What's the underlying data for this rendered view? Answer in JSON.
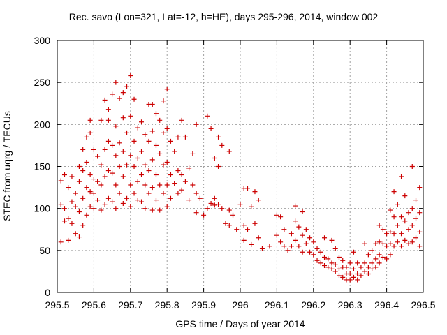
{
  "chart_data": {
    "type": "scatter",
    "title": "Rec. savo (Lon=321, Lat=-12, h=HE), days 295-296, 2014, window 002",
    "xlabel": "GPS time / Days of year 2014",
    "ylabel": "STEC from uqrg / TECUs",
    "xlim": [
      295.5,
      296.5
    ],
    "ylim": [
      0,
      300
    ],
    "xticks": [
      295.5,
      295.6,
      295.7,
      295.8,
      295.9,
      296.0,
      296.1,
      296.2,
      296.3,
      296.4,
      296.5
    ],
    "xtick_labels": [
      "295.5",
      "295.6",
      "295.7",
      "295.8",
      "295.9",
      "296",
      "296.1",
      "296.2",
      "296.3",
      "296.4",
      "296.5"
    ],
    "yticks": [
      0,
      50,
      100,
      150,
      200,
      250,
      300
    ],
    "ytick_labels": [
      "0",
      "50",
      "100",
      "150",
      "200",
      "250",
      "300"
    ],
    "grid": true,
    "legend": "none",
    "marker": "+",
    "color": "#cc0000",
    "series": [
      {
        "points": [
          [
            295.51,
            133
          ],
          [
            295.51,
            105
          ],
          [
            295.51,
            60
          ],
          [
            295.52,
            140
          ],
          [
            295.52,
            100
          ],
          [
            295.52,
            85
          ],
          [
            295.53,
            125
          ],
          [
            295.53,
            88
          ],
          [
            295.53,
            62
          ],
          [
            295.54,
            138
          ],
          [
            295.54,
            108
          ],
          [
            295.54,
            82
          ],
          [
            295.55,
            118
          ],
          [
            295.55,
            102
          ],
          [
            295.55,
            70
          ],
          [
            295.56,
            150
          ],
          [
            295.56,
            132
          ],
          [
            295.56,
            96
          ],
          [
            295.56,
            66
          ],
          [
            295.57,
            170
          ],
          [
            295.57,
            145
          ],
          [
            295.57,
            112
          ],
          [
            295.57,
            80
          ],
          [
            295.58,
            185
          ],
          [
            295.58,
            155
          ],
          [
            295.58,
            125
          ],
          [
            295.58,
            92
          ],
          [
            295.59,
            205
          ],
          [
            295.59,
            190
          ],
          [
            295.59,
            140
          ],
          [
            295.59,
            120
          ],
          [
            295.59,
            102
          ],
          [
            295.6,
            170
          ],
          [
            295.6,
            135
          ],
          [
            295.6,
            118
          ],
          [
            295.6,
            100
          ],
          [
            295.61,
            162
          ],
          [
            295.61,
            132
          ],
          [
            295.61,
            110
          ],
          [
            295.62,
            205
          ],
          [
            295.62,
            152
          ],
          [
            295.62,
            128
          ],
          [
            295.62,
            98
          ],
          [
            295.63,
            229
          ],
          [
            295.63,
            170
          ],
          [
            295.63,
            138
          ],
          [
            295.63,
            105
          ],
          [
            295.64,
            218
          ],
          [
            295.64,
            205
          ],
          [
            295.64,
            180
          ],
          [
            295.64,
            145
          ],
          [
            295.64,
            112
          ],
          [
            295.65,
            236
          ],
          [
            295.65,
            175
          ],
          [
            295.65,
            142
          ],
          [
            295.65,
            108
          ],
          [
            295.66,
            250
          ],
          [
            295.66,
            198
          ],
          [
            295.66,
            163
          ],
          [
            295.66,
            128
          ],
          [
            295.66,
            100
          ],
          [
            295.67,
            231
          ],
          [
            295.67,
            178
          ],
          [
            295.67,
            150
          ],
          [
            295.67,
            118
          ],
          [
            295.68,
            238
          ],
          [
            295.68,
            208
          ],
          [
            295.68,
            168
          ],
          [
            295.68,
            138
          ],
          [
            295.68,
            106
          ],
          [
            295.69,
            245
          ],
          [
            295.69,
            190
          ],
          [
            295.69,
            152
          ],
          [
            295.69,
            112
          ],
          [
            295.7,
            258
          ],
          [
            295.7,
            210
          ],
          [
            295.7,
            163
          ],
          [
            295.7,
            128
          ],
          [
            295.7,
            102
          ],
          [
            295.71,
            230
          ],
          [
            295.71,
            180
          ],
          [
            295.71,
            150
          ],
          [
            295.71,
            118
          ],
          [
            295.72,
            196
          ],
          [
            295.72,
            160
          ],
          [
            295.72,
            132
          ],
          [
            295.72,
            110
          ],
          [
            295.73,
            203
          ],
          [
            295.73,
            168
          ],
          [
            295.73,
            140
          ],
          [
            295.73,
            108
          ],
          [
            295.74,
            188
          ],
          [
            295.74,
            152
          ],
          [
            295.74,
            128
          ],
          [
            295.74,
            100
          ],
          [
            295.75,
            224
          ],
          [
            295.75,
            180
          ],
          [
            295.75,
            145
          ],
          [
            295.75,
            118
          ],
          [
            295.76,
            224
          ],
          [
            295.76,
            192
          ],
          [
            295.76,
            158
          ],
          [
            295.76,
            125
          ],
          [
            295.76,
            98
          ],
          [
            295.77,
            213
          ],
          [
            295.77,
            175
          ],
          [
            295.77,
            140
          ],
          [
            295.77,
            110
          ],
          [
            295.78,
            205
          ],
          [
            295.78,
            165
          ],
          [
            295.78,
            128
          ],
          [
            295.78,
            98
          ],
          [
            295.79,
            228
          ],
          [
            295.79,
            190
          ],
          [
            295.79,
            152
          ],
          [
            295.79,
            118
          ],
          [
            295.8,
            242
          ],
          [
            295.8,
            195
          ],
          [
            295.8,
            155
          ],
          [
            295.8,
            128
          ],
          [
            295.8,
            102
          ],
          [
            295.81,
            180
          ],
          [
            295.81,
            140
          ],
          [
            295.81,
            112
          ],
          [
            295.82,
            168
          ],
          [
            295.82,
            130
          ],
          [
            295.83,
            185
          ],
          [
            295.83,
            145
          ],
          [
            295.83,
            118
          ],
          [
            295.84,
            205
          ],
          [
            295.84,
            140
          ],
          [
            295.84,
            122
          ],
          [
            295.85,
            185
          ],
          [
            295.85,
            132
          ],
          [
            295.86,
            148
          ],
          [
            295.86,
            110
          ],
          [
            295.87,
            165
          ],
          [
            295.87,
            128
          ],
          [
            295.88,
            200
          ],
          [
            295.88,
            118
          ],
          [
            295.88,
            95
          ],
          [
            295.89,
            112
          ],
          [
            295.9,
            92
          ],
          [
            295.91,
            210
          ],
          [
            295.91,
            100
          ],
          [
            295.92,
            195
          ],
          [
            295.92,
            106
          ],
          [
            295.93,
            160
          ],
          [
            295.93,
            112
          ],
          [
            295.93,
            104
          ],
          [
            295.94,
            185
          ],
          [
            295.94,
            150
          ],
          [
            295.94,
            105
          ],
          [
            295.95,
            175
          ],
          [
            295.95,
            100
          ],
          [
            295.96,
            82
          ],
          [
            295.97,
            168
          ],
          [
            295.97,
            98
          ],
          [
            295.97,
            80
          ],
          [
            295.98,
            92
          ],
          [
            295.99,
            75
          ],
          [
            296.0,
            105
          ],
          [
            296.01,
            124
          ],
          [
            296.01,
            80
          ],
          [
            296.01,
            62
          ],
          [
            296.02,
            124
          ],
          [
            296.02,
            75
          ],
          [
            296.03,
            102
          ],
          [
            296.03,
            57
          ],
          [
            296.04,
            120
          ],
          [
            296.04,
            82
          ],
          [
            296.05,
            110
          ],
          [
            296.05,
            65
          ],
          [
            296.06,
            52
          ],
          [
            296.08,
            55
          ],
          [
            296.1,
            92
          ],
          [
            296.1,
            68
          ],
          [
            296.11,
            90
          ],
          [
            296.11,
            60
          ],
          [
            296.12,
            75
          ],
          [
            296.12,
            55
          ],
          [
            296.13,
            50
          ],
          [
            296.14,
            70
          ],
          [
            296.14,
            55
          ],
          [
            296.15,
            103
          ],
          [
            296.15,
            85
          ],
          [
            296.15,
            62
          ],
          [
            296.16,
            78
          ],
          [
            296.16,
            55
          ],
          [
            296.17,
            96
          ],
          [
            296.17,
            68
          ],
          [
            296.17,
            48
          ],
          [
            296.18,
            75
          ],
          [
            296.18,
            58
          ],
          [
            296.19,
            48
          ],
          [
            296.19,
            65
          ],
          [
            296.2,
            60
          ],
          [
            296.2,
            45
          ],
          [
            296.21,
            52
          ],
          [
            296.21,
            38
          ],
          [
            296.22,
            48
          ],
          [
            296.22,
            35
          ],
          [
            296.23,
            65
          ],
          [
            296.23,
            42
          ],
          [
            296.23,
            32
          ],
          [
            296.24,
            40
          ],
          [
            296.24,
            30
          ],
          [
            296.25,
            62
          ],
          [
            296.25,
            35
          ],
          [
            296.25,
            28
          ],
          [
            296.26,
            52
          ],
          [
            296.26,
            33
          ],
          [
            296.26,
            25
          ],
          [
            296.27,
            42
          ],
          [
            296.27,
            28
          ],
          [
            296.27,
            20
          ],
          [
            296.28,
            38
          ],
          [
            296.28,
            30
          ],
          [
            296.28,
            18
          ],
          [
            296.29,
            30
          ],
          [
            296.29,
            22
          ],
          [
            296.29,
            15
          ],
          [
            296.3,
            35
          ],
          [
            296.3,
            22
          ],
          [
            296.3,
            15
          ],
          [
            296.31,
            48
          ],
          [
            296.31,
            28
          ],
          [
            296.31,
            18
          ],
          [
            296.32,
            35
          ],
          [
            296.32,
            22
          ],
          [
            296.32,
            15
          ],
          [
            296.33,
            30
          ],
          [
            296.33,
            20
          ],
          [
            296.34,
            58
          ],
          [
            296.34,
            35
          ],
          [
            296.34,
            25
          ],
          [
            296.35,
            45
          ],
          [
            296.35,
            30
          ],
          [
            296.35,
            22
          ],
          [
            296.36,
            50
          ],
          [
            296.36,
            35
          ],
          [
            296.36,
            28
          ],
          [
            296.37,
            58
          ],
          [
            296.37,
            40
          ],
          [
            296.37,
            30
          ],
          [
            296.38,
            80
          ],
          [
            296.38,
            60
          ],
          [
            296.38,
            45
          ],
          [
            296.38,
            35
          ],
          [
            296.39,
            75
          ],
          [
            296.39,
            58
          ],
          [
            296.39,
            42
          ],
          [
            296.4,
            70
          ],
          [
            296.4,
            55
          ],
          [
            296.4,
            40
          ],
          [
            296.41,
            98
          ],
          [
            296.41,
            72
          ],
          [
            296.41,
            58
          ],
          [
            296.41,
            45
          ],
          [
            296.42,
            120
          ],
          [
            296.42,
            90
          ],
          [
            296.42,
            70
          ],
          [
            296.42,
            55
          ],
          [
            296.43,
            105
          ],
          [
            296.43,
            80
          ],
          [
            296.43,
            60
          ],
          [
            296.44,
            138
          ],
          [
            296.44,
            90
          ],
          [
            296.44,
            70
          ],
          [
            296.44,
            55
          ],
          [
            296.45,
            115
          ],
          [
            296.45,
            85
          ],
          [
            296.45,
            62
          ],
          [
            296.46,
            95
          ],
          [
            296.46,
            75
          ],
          [
            296.46,
            58
          ],
          [
            296.47,
            150
          ],
          [
            296.47,
            100
          ],
          [
            296.47,
            80
          ],
          [
            296.47,
            60
          ],
          [
            296.48,
            110
          ],
          [
            296.48,
            88
          ],
          [
            296.48,
            65
          ],
          [
            296.49,
            125
          ],
          [
            296.49,
            95
          ],
          [
            296.49,
            72
          ],
          [
            296.49,
            55
          ]
        ]
      }
    ]
  }
}
